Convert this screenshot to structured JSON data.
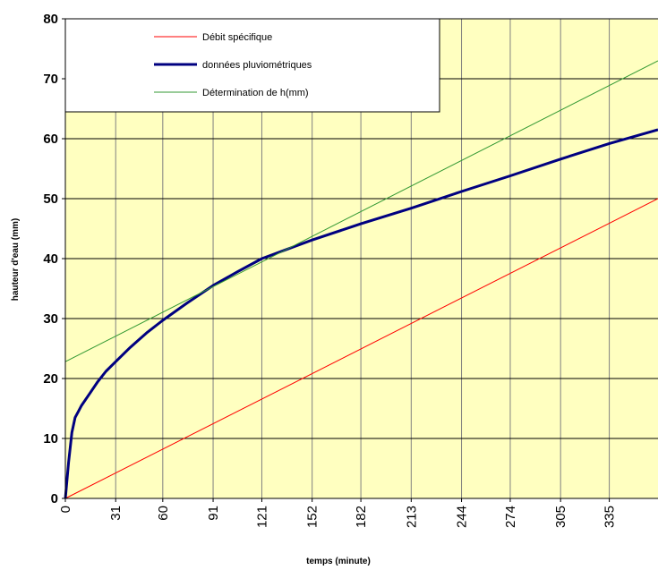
{
  "chart_data": {
    "type": "line",
    "xlabel": "temps (minute)",
    "ylabel": "hauteur d'eau (mm)",
    "xlim": [
      0,
      365
    ],
    "ylim": [
      0,
      80
    ],
    "x_ticks": [
      "0",
      "31",
      "60",
      "91",
      "121",
      "152",
      "182",
      "213",
      "244",
      "274",
      "305",
      "335"
    ],
    "x_tick_values": [
      0,
      31,
      60,
      91,
      121,
      152,
      182,
      213,
      244,
      274,
      305,
      335
    ],
    "y_ticks": [
      "0",
      "10",
      "20",
      "30",
      "40",
      "50",
      "60",
      "70",
      "80"
    ],
    "y_tick_values": [
      0,
      10,
      20,
      30,
      40,
      50,
      60,
      70,
      80
    ],
    "grid": true,
    "legend_position": "top-left",
    "plot_background": "#ffffc0",
    "series": [
      {
        "name": "Débit spécifique",
        "color": "#ff0000",
        "width": 1,
        "x": [
          0,
          365
        ],
        "y": [
          0,
          50
        ]
      },
      {
        "name": "données pluviométriques",
        "color": "#000080",
        "width": 3,
        "x": [
          0,
          2,
          4,
          6,
          8,
          10,
          15,
          20,
          25,
          31,
          40,
          50,
          60,
          75,
          91,
          106,
          121,
          152,
          182,
          213,
          244,
          274,
          305,
          335,
          365
        ],
        "y": [
          0,
          6,
          11,
          13.5,
          14.5,
          15.5,
          17.5,
          19.5,
          21.2,
          22.8,
          25.2,
          27.6,
          29.7,
          32.6,
          35.5,
          37.8,
          40,
          43.1,
          45.8,
          48.4,
          51.2,
          53.8,
          56.6,
          59.2,
          61.5
        ]
      },
      {
        "name": "Détermination de h(mm)",
        "color": "#339933",
        "width": 1,
        "x": [
          0,
          365
        ],
        "y": [
          22.8,
          73
        ]
      }
    ]
  }
}
